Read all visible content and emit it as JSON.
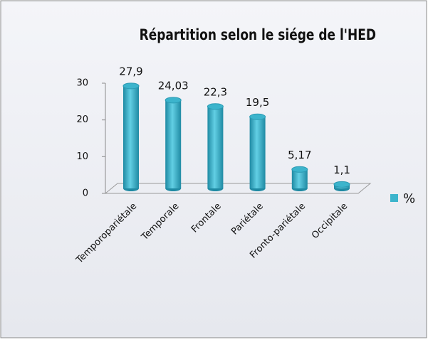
{
  "chart_data": {
    "type": "bar3d",
    "title": "Répartition selon le siége de l'HED",
    "categories": [
      "Temporopariétale",
      "Temporale",
      "Frontale",
      "Pariétale",
      "Fronto-pariétale",
      "Occipitale"
    ],
    "series": [
      {
        "name": "%",
        "color": "#3cb4cc",
        "values": [
          27.9,
          24.03,
          22.3,
          19.5,
          5.17,
          1.1
        ],
        "value_labels": [
          "27,9",
          "24,03",
          "22,3",
          "19,5",
          "5,17",
          "1,1"
        ]
      }
    ],
    "ylim": [
      0,
      30
    ],
    "yticks": [
      0,
      10,
      20,
      30
    ],
    "legend": "right"
  }
}
